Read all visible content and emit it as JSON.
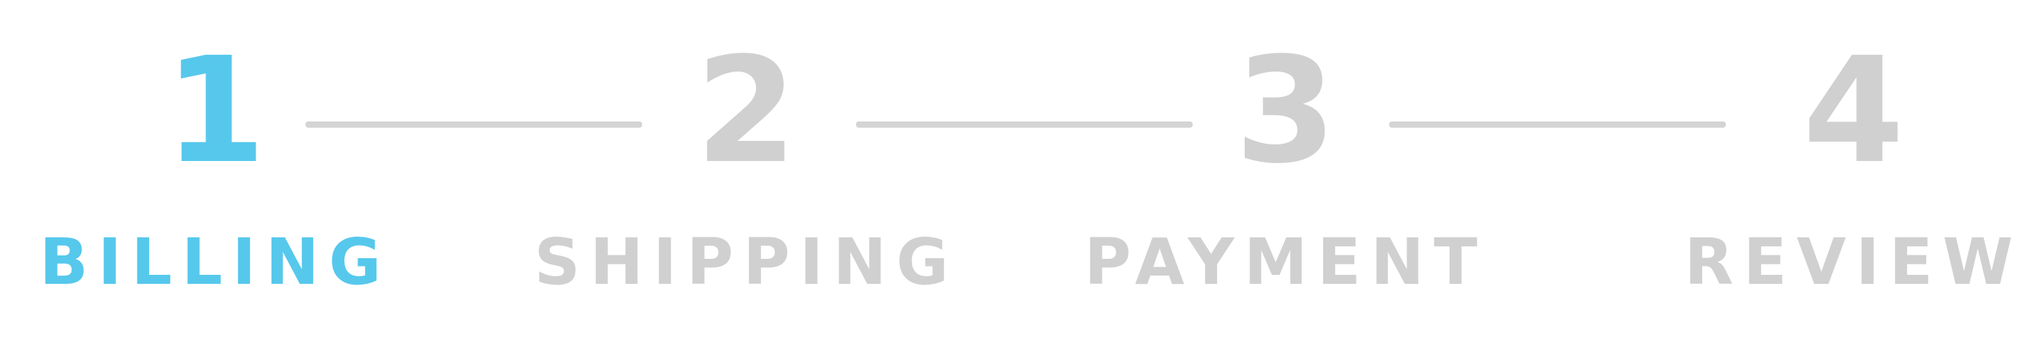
{
  "colors": {
    "active": "#56c8ec",
    "inactive": "#d0d0d0",
    "connector": "#d4d4d4"
  },
  "checkout_steps": {
    "active_step": 1,
    "steps": [
      {
        "number": "1",
        "label": "BILLING",
        "state": "active"
      },
      {
        "number": "2",
        "label": "SHIPPING",
        "state": "inactive"
      },
      {
        "number": "3",
        "label": "PAYMENT",
        "state": "inactive"
      },
      {
        "number": "4",
        "label": "REVIEW",
        "state": "inactive"
      }
    ]
  }
}
